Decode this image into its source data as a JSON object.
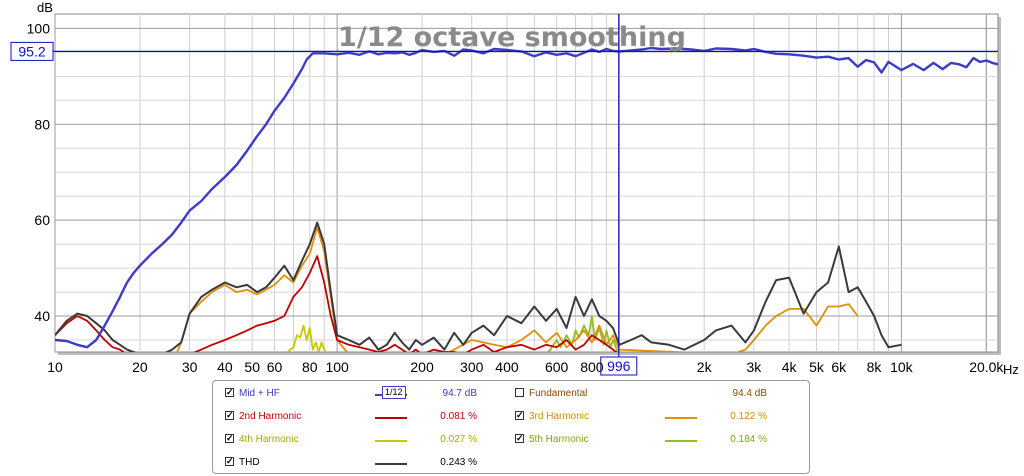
{
  "chart_data": {
    "type": "line",
    "title": "1/12 octave smoothing",
    "xlabel_unit": "Hz",
    "ylabel_unit": "dB",
    "x_scale": "log",
    "xlim": [
      10,
      22000
    ],
    "ylim": [
      32.5,
      103
    ],
    "x_ticks": [
      {
        "v": 10,
        "label": "10"
      },
      {
        "v": 20,
        "label": "20"
      },
      {
        "v": 30,
        "label": "30"
      },
      {
        "v": 40,
        "label": "40"
      },
      {
        "v": 50,
        "label": "50"
      },
      {
        "v": 60,
        "label": "60"
      },
      {
        "v": 80,
        "label": "80"
      },
      {
        "v": 100,
        "label": "100"
      },
      {
        "v": 200,
        "label": "200"
      },
      {
        "v": 300,
        "label": "300"
      },
      {
        "v": 400,
        "label": "400"
      },
      {
        "v": 600,
        "label": "600"
      },
      {
        "v": 800,
        "label": "800"
      },
      {
        "v": 2000,
        "label": "2k"
      },
      {
        "v": 3000,
        "label": "3k"
      },
      {
        "v": 4000,
        "label": "4k"
      },
      {
        "v": 5000,
        "label": "5k"
      },
      {
        "v": 6000,
        "label": "6k"
      },
      {
        "v": 8000,
        "label": "8k"
      },
      {
        "v": 10000,
        "label": "10k"
      },
      {
        "v": 20000,
        "label": "20.0k"
      }
    ],
    "y_ticks": [
      40,
      60,
      80,
      100
    ],
    "grid": true,
    "cursor": {
      "x": 996,
      "y": 95.2,
      "x_label": "996",
      "y_label": "95.2"
    },
    "series": [
      {
        "name": "Mid + HF",
        "color": "#3c3cc8",
        "width": 2.4,
        "x": [
          10,
          11,
          12,
          13,
          14,
          15,
          16,
          17,
          18,
          19,
          20,
          22,
          24,
          26,
          28,
          30,
          33,
          36,
          40,
          44,
          48,
          52,
          56,
          60,
          65,
          70,
          75,
          78,
          82,
          90,
          100,
          110,
          120,
          130,
          140,
          150,
          160,
          170,
          180,
          190,
          200,
          220,
          240,
          260,
          280,
          300,
          330,
          360,
          400,
          450,
          500,
          550,
          600,
          650,
          700,
          750,
          800,
          850,
          900,
          950,
          1000,
          1100,
          1200,
          1300,
          1400,
          1600,
          1800,
          2000,
          2200,
          2500,
          2800,
          3000,
          3300,
          3600,
          4000,
          4500,
          5000,
          5500,
          6000,
          6500,
          7000,
          7500,
          8000,
          8500,
          9000,
          10000,
          11000,
          12000,
          13000,
          14000,
          15000,
          16000,
          17000,
          18000,
          19000,
          20000,
          21000,
          22000
        ],
        "y": [
          35,
          34.8,
          34,
          33.5,
          35,
          38,
          41,
          44,
          47,
          49,
          50.5,
          53,
          55,
          57,
          59.5,
          62,
          64,
          66.5,
          69,
          71.5,
          74.5,
          77.5,
          80,
          82.8,
          85.5,
          88.5,
          91.5,
          93.5,
          94.8,
          94.8,
          94.6,
          94.9,
          94.5,
          95.2,
          94.6,
          94.9,
          94.8,
          95,
          94.5,
          94.9,
          95.5,
          95.1,
          95.3,
          94.3,
          95.6,
          95.4,
          94.8,
          95.7,
          95.5,
          95.2,
          94.2,
          95,
          94.5,
          94.8,
          94.2,
          94.9,
          95.6,
          95.1,
          95.7,
          95.3,
          95.2,
          95.4,
          95.6,
          95.9,
          95.7,
          95.8,
          95.6,
          95.3,
          95.8,
          95.7,
          95.4,
          95.7,
          95.1,
          94.7,
          94.6,
          94.3,
          93.9,
          94.1,
          93.5,
          93.8,
          92,
          93.4,
          92.9,
          90.8,
          93,
          91.3,
          92.6,
          91.3,
          92.8,
          91.5,
          92.8,
          92.5,
          91.9,
          93.8,
          93,
          93.3,
          92.8,
          92.5
        ]
      },
      {
        "name": "2nd Harmonic",
        "color": "#c00000",
        "width": 1.8,
        "x": [
          10,
          11,
          12,
          13,
          14,
          15,
          16,
          17,
          18,
          20,
          22,
          24,
          26,
          28,
          30,
          33,
          36,
          40,
          44,
          48,
          52,
          56,
          60,
          65,
          70,
          75,
          80,
          85,
          90,
          95,
          100,
          110,
          120,
          130,
          140,
          150,
          160,
          170,
          180,
          190,
          200,
          220,
          240,
          260,
          280,
          300,
          330,
          360,
          400,
          450,
          500,
          550,
          600,
          650,
          700,
          750,
          800,
          850,
          900,
          950,
          1000
        ],
        "y": [
          36,
          38.5,
          40,
          39,
          37,
          35,
          33.5,
          33,
          32,
          30,
          28,
          29,
          30,
          31,
          32,
          33,
          34,
          35,
          36,
          37,
          38,
          38.5,
          39,
          40,
          44,
          46,
          49,
          52.5,
          47,
          40,
          35,
          34,
          33.5,
          33,
          32.5,
          33,
          34,
          33,
          32,
          33,
          32,
          33,
          32.5,
          32.5,
          32,
          33,
          34,
          32.5,
          33.5,
          34,
          33,
          34,
          33.5,
          35,
          33,
          34,
          36,
          35,
          34,
          33,
          32
        ]
      },
      {
        "name": "3rd Harmonic",
        "color": "#e0900a",
        "width": 1.8,
        "x": [
          24,
          26,
          28,
          30,
          33,
          36,
          40,
          44,
          48,
          52,
          56,
          60,
          65,
          70,
          75,
          80,
          85,
          90,
          100,
          110,
          130,
          150,
          180,
          200,
          230,
          260,
          300,
          330,
          360,
          400,
          450,
          500,
          550,
          600,
          650,
          700,
          750,
          800,
          850,
          900,
          950,
          1000,
          2500,
          2800,
          3000,
          3300,
          3600,
          4000,
          4500,
          5000,
          5500,
          6000,
          6500,
          7000
        ],
        "y": [
          28,
          30,
          34.5,
          40.5,
          43,
          45,
          46.5,
          45,
          45.5,
          44.5,
          45.5,
          46.5,
          48.5,
          47,
          50.5,
          53,
          58.5,
          53.5,
          35,
          32,
          31,
          30,
          31,
          32,
          31.5,
          33,
          35,
          34.5,
          34,
          33.5,
          35,
          37,
          34.5,
          36.5,
          33.5,
          35,
          37,
          34.5,
          38,
          34,
          36,
          33,
          32,
          33,
          35,
          38,
          40,
          41.5,
          41.5,
          38,
          42,
          42,
          42.5,
          40
        ]
      },
      {
        "name": "4th Harmonic",
        "color": "#c8c800",
        "width": 1.8,
        "x": [
          60,
          65,
          70,
          72,
          74,
          76,
          78,
          80,
          82,
          84,
          86,
          88,
          90,
          94,
          98
        ],
        "y": [
          30,
          32,
          33.5,
          36,
          35.5,
          38,
          35,
          37.5,
          33,
          34.5,
          32.5,
          34.5,
          33,
          31,
          29
        ]
      },
      {
        "name": "5th Harmonic",
        "color": "#90c020",
        "width": 1.8,
        "x": [
          550,
          570,
          600,
          620,
          650,
          680,
          700,
          720,
          750,
          780,
          800,
          820,
          850,
          880,
          900,
          930,
          950,
          980,
          1000
        ],
        "y": [
          32,
          33,
          35,
          33.5,
          36,
          34,
          37,
          35.5,
          38,
          36,
          40,
          35,
          37.5,
          34,
          37,
          33.5,
          35,
          33,
          32
        ]
      },
      {
        "name": "THD",
        "color": "#3a3a3a",
        "width": 2.0,
        "x": [
          10,
          11,
          12,
          13,
          14,
          15,
          16,
          17,
          18,
          20,
          22,
          24,
          26,
          28,
          30,
          33,
          36,
          40,
          44,
          48,
          52,
          56,
          60,
          65,
          70,
          75,
          80,
          85,
          90,
          95,
          100,
          110,
          120,
          130,
          140,
          150,
          160,
          170,
          180,
          190,
          200,
          220,
          240,
          260,
          280,
          300,
          330,
          360,
          400,
          450,
          500,
          550,
          600,
          650,
          700,
          750,
          800,
          850,
          900,
          950,
          1000,
          1100,
          1200,
          1300,
          1500,
          1700,
          2000,
          2200,
          2500,
          2800,
          3000,
          3300,
          3600,
          4000,
          4500,
          5000,
          5500,
          6000,
          6500,
          7000,
          7500,
          8000,
          8500,
          9000,
          10000
        ],
        "y": [
          36,
          39,
          40.5,
          40,
          38.5,
          37,
          35,
          34,
          33,
          32,
          31,
          32,
          33,
          34.5,
          40.5,
          44,
          45.5,
          47,
          46,
          46.5,
          45,
          46,
          48,
          50.5,
          47.5,
          51.5,
          55,
          59.5,
          55,
          45,
          36,
          35,
          34,
          35.5,
          33,
          34,
          36.5,
          34.5,
          33,
          35,
          34,
          35.5,
          33,
          36.5,
          34,
          36.5,
          38,
          36,
          40,
          38.5,
          42,
          39,
          41.5,
          37.5,
          44,
          40,
          43.5,
          40,
          39,
          37.5,
          34,
          35,
          36,
          34.5,
          34,
          33,
          35,
          37,
          38,
          34.5,
          37,
          43,
          47.5,
          48,
          40.5,
          45,
          47,
          54.5,
          45,
          46,
          43,
          40,
          36,
          33.5,
          34
        ]
      }
    ]
  },
  "legend": {
    "rows": [
      [
        {
          "checked": true,
          "name": "Mid + HF",
          "name_color": "#3c3cc8",
          "swatch_color": "#3c3cc8",
          "swatch_badge": "1/12",
          "value": "94.7 dB",
          "value_color": "#3c3cc8"
        },
        {
          "checked": false,
          "name": "Fundamental",
          "name_color": "#8a4a00",
          "swatch_color": "",
          "value": "94.4 dB",
          "value_color": "#8a4a00"
        }
      ],
      [
        {
          "checked": true,
          "name": "2nd Harmonic",
          "name_color": "#c00000",
          "swatch_color": "#c00000",
          "value": "0.081 %",
          "value_color": "#c00000"
        },
        {
          "checked": true,
          "name": "3rd Harmonic",
          "name_color": "#d88a00",
          "swatch_color": "#e0900a",
          "value": "0.122 %",
          "value_color": "#d88a00"
        }
      ],
      [
        {
          "checked": true,
          "name": "4th Harmonic",
          "name_color": "#a8a800",
          "swatch_color": "#c8c800",
          "value": "0.027 %",
          "value_color": "#a8a800"
        },
        {
          "checked": true,
          "name": "5th Harmonic",
          "name_color": "#78a818",
          "swatch_color": "#90c020",
          "value": "0.184 %",
          "value_color": "#78a818"
        }
      ],
      [
        {
          "checked": true,
          "name": "THD",
          "name_color": "#000000",
          "swatch_color": "#3a3a3a",
          "value": "0.243 %",
          "value_color": "#000000"
        }
      ]
    ]
  }
}
